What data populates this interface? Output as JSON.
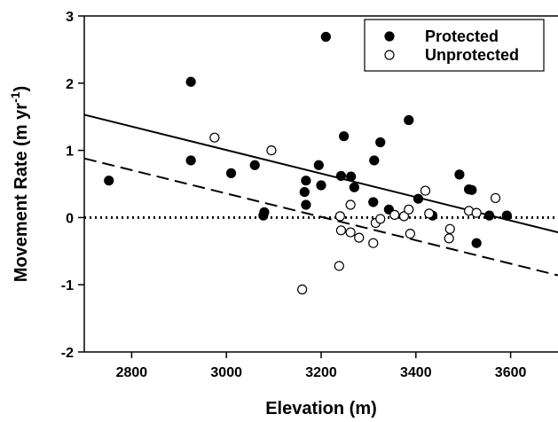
{
  "chart_data": {
    "type": "scatter",
    "xlabel": "Elevation (m)",
    "ylabel": "Movement Rate (m yr",
    "ylabel_sup": "-1",
    "ylabel_end": ")",
    "xlim": [
      2700,
      3700
    ],
    "ylim": [
      -2,
      3
    ],
    "xticks": [
      2800,
      3000,
      3200,
      3400,
      3600
    ],
    "yticks": [
      -2,
      -1,
      0,
      1,
      2,
      3
    ],
    "legend": {
      "position": "top-right"
    },
    "colors": {
      "protected": "#000000",
      "unprotected": "#ffffff",
      "stroke": "#000000"
    },
    "series": [
      {
        "name": "Protected",
        "marker": "filled-circle",
        "points": [
          [
            2752,
            0.55
          ],
          [
            2925,
            2.02
          ],
          [
            2925,
            0.85
          ],
          [
            3010,
            0.66
          ],
          [
            3060,
            0.78
          ],
          [
            3078,
            0.03
          ],
          [
            3080,
            0.08
          ],
          [
            3165,
            0.38
          ],
          [
            3168,
            0.55
          ],
          [
            3168,
            0.19
          ],
          [
            3195,
            0.78
          ],
          [
            3200,
            0.48
          ],
          [
            3210,
            2.69
          ],
          [
            3242,
            0.62
          ],
          [
            3248,
            1.21
          ],
          [
            3263,
            0.61
          ],
          [
            3270,
            0.45
          ],
          [
            3310,
            0.23
          ],
          [
            3312,
            0.85
          ],
          [
            3325,
            1.12
          ],
          [
            3343,
            0.12
          ],
          [
            3385,
            1.45
          ],
          [
            3405,
            0.28
          ],
          [
            3435,
            0.03
          ],
          [
            3492,
            0.64
          ],
          [
            3512,
            0.42
          ],
          [
            3518,
            0.41
          ],
          [
            3528,
            -0.38
          ],
          [
            3555,
            0.03
          ],
          [
            3592,
            0.03
          ]
        ],
        "trendline": {
          "style": "solid",
          "x": [
            2700,
            3700
          ],
          "y": [
            1.53,
            -0.22
          ]
        }
      },
      {
        "name": "Unprotected",
        "marker": "open-circle",
        "points": [
          [
            2975,
            1.19
          ],
          [
            3095,
            1.0
          ],
          [
            3160,
            -1.07
          ],
          [
            3238,
            -0.72
          ],
          [
            3240,
            0.02
          ],
          [
            3242,
            -0.19
          ],
          [
            3262,
            0.19
          ],
          [
            3262,
            -0.22
          ],
          [
            3280,
            -0.3
          ],
          [
            3310,
            -0.38
          ],
          [
            3315,
            -0.08
          ],
          [
            3325,
            -0.02
          ],
          [
            3355,
            0.04
          ],
          [
            3375,
            0.02
          ],
          [
            3385,
            0.12
          ],
          [
            3388,
            -0.24
          ],
          [
            3420,
            0.4
          ],
          [
            3428,
            0.06
          ],
          [
            3470,
            -0.31
          ],
          [
            3472,
            -0.17
          ],
          [
            3512,
            0.1
          ],
          [
            3528,
            0.07
          ],
          [
            3568,
            0.29
          ]
        ],
        "trendline": {
          "style": "dashed",
          "x": [
            2700,
            3700
          ],
          "y": [
            0.88,
            -0.86
          ]
        }
      }
    ],
    "reference_line": {
      "y": 0,
      "style": "dotted"
    }
  }
}
